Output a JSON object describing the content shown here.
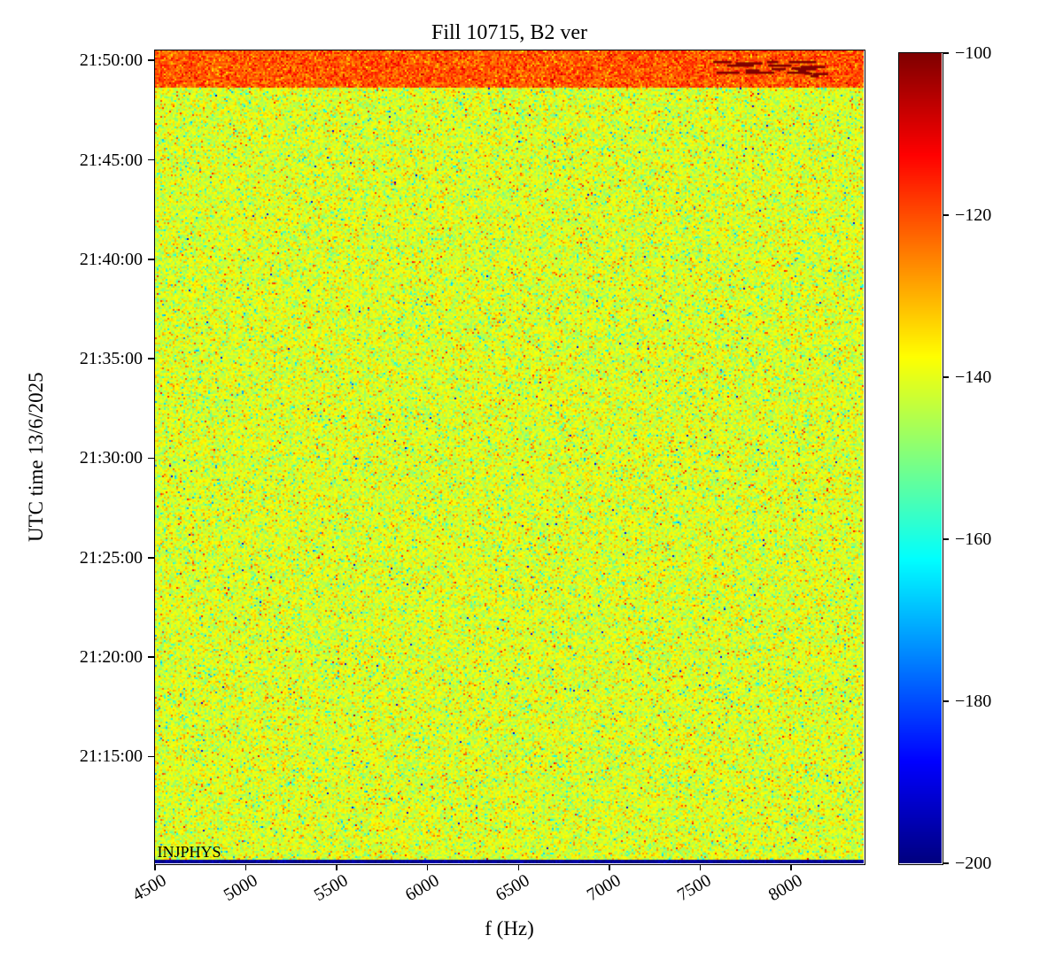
{
  "chart_data": {
    "type": "heatmap",
    "title": "Fill 10715, B2 ver",
    "xlabel": "f (Hz)",
    "ylabel": "UTC time 13/6/2025",
    "annotation": "INJPHYS",
    "colormap": "jet",
    "x_range_hz": [
      4500,
      8400
    ],
    "x_tick_labels": [
      "4500",
      "5000",
      "5500",
      "6000",
      "6500",
      "7000",
      "7500",
      "8000"
    ],
    "y_time_top": "21:50:30",
    "y_time_bottom": "21:09:38",
    "y_tick_labels": [
      "21:50:00",
      "21:45:00",
      "21:40:00",
      "21:35:00",
      "21:30:00",
      "21:25:00",
      "21:20:00",
      "21:15:00"
    ],
    "value_min_db": -200,
    "value_max_db": -100,
    "colorbar_tick_values": [
      -100,
      -120,
      -140,
      -160,
      -180,
      -200
    ],
    "colorbar_tick_labels": [
      "−100",
      "−120",
      "−140",
      "−160",
      "−180",
      "−200"
    ],
    "noise_floor": {
      "mean_db": -141,
      "std_db": 5,
      "cool_speck_prob": 0.035,
      "cool_speck_offset_db": -16,
      "hot_speck_prob": 0.03,
      "hot_speck_offset_db": 13,
      "dark_speck_prob": 0.0008,
      "dark_speck_db": -190
    },
    "injection_band": {
      "time_start": "21:48:40",
      "time_end": "21:50:30",
      "mean_db": -121,
      "std_db": 5
    },
    "dark_streaks": {
      "freq_start_hz": 7550,
      "freq_end_hz": 8200,
      "time_center": "21:49:45",
      "level_db": -100
    },
    "bottom_edge_row": {
      "level_db": -198
    }
  }
}
